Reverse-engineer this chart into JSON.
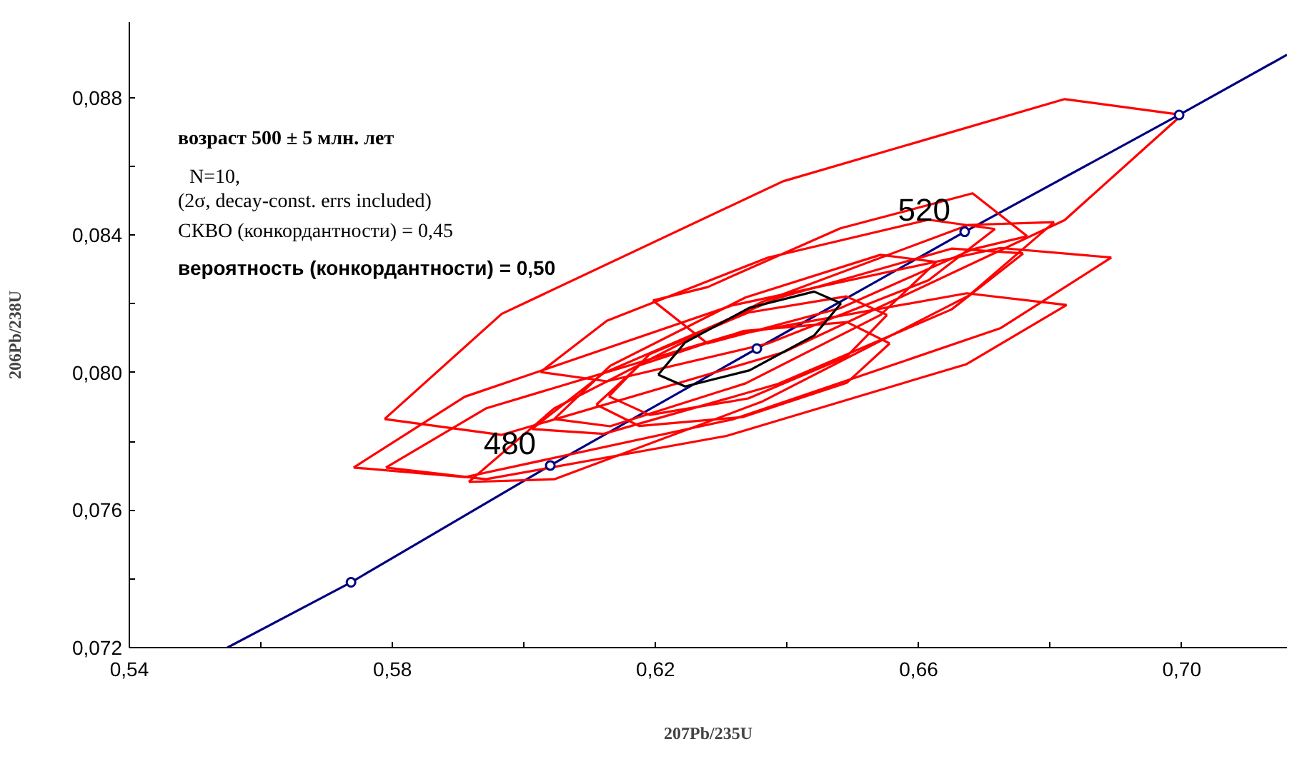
{
  "chart_data": {
    "type": "line",
    "xlabel": "207Pb/235U",
    "ylabel": "206Pb/238U",
    "xlim": [
      0.54,
      0.716
    ],
    "ylim": [
      0.072,
      0.0902
    ],
    "xticks": [
      {
        "value": 0.54,
        "label": "0,54"
      },
      {
        "value": 0.56,
        "label": null
      },
      {
        "value": 0.58,
        "label": "0,58"
      },
      {
        "value": 0.6,
        "label": null
      },
      {
        "value": 0.62,
        "label": "0,62"
      },
      {
        "value": 0.64,
        "label": null
      },
      {
        "value": 0.66,
        "label": "0,66"
      },
      {
        "value": 0.68,
        "label": null
      },
      {
        "value": 0.7,
        "label": "0,70"
      }
    ],
    "yticks": [
      {
        "value": 0.072,
        "label": "0,072"
      },
      {
        "value": 0.074,
        "label": null
      },
      {
        "value": 0.076,
        "label": "0,076"
      },
      {
        "value": 0.078,
        "label": null
      },
      {
        "value": 0.08,
        "label": "0,080"
      },
      {
        "value": 0.082,
        "label": null
      },
      {
        "value": 0.084,
        "label": "0,084"
      },
      {
        "value": 0.086,
        "label": null
      },
      {
        "value": 0.088,
        "label": "0,088"
      }
    ],
    "grid": false,
    "series": [
      {
        "color": "#000080",
        "x": [
          0.5549,
          0.5737,
          0.604,
          0.6354,
          0.667,
          0.6996,
          0.716
        ],
        "values": [
          0.072,
          0.0739,
          0.0773,
          0.0807,
          0.0841,
          0.0875,
          0.08925
        ]
      },
      {
        "color": "#ff0000",
        "x": [
          0.5788,
          0.5966,
          0.6394,
          0.6822,
          0.7
        ],
        "values": [
          0.07865,
          0.08171,
          0.08557,
          0.08796,
          0.0875
        ]
      },
      {
        "color": "#ff0000",
        "x": [
          0.5788,
          0.5966,
          0.6394,
          0.6822,
          0.7
        ],
        "values": [
          0.07865,
          0.07819,
          0.08059,
          0.08444,
          0.0875
        ]
      },
      {
        "color": "#ff0000",
        "x": [
          0.5741,
          0.591,
          0.6317,
          0.6724,
          0.6893
        ],
        "values": [
          0.07724,
          0.0793,
          0.08196,
          0.08363,
          0.08335
        ]
      },
      {
        "color": "#ff0000",
        "x": [
          0.5741,
          0.591,
          0.6317,
          0.6724,
          0.6893
        ],
        "values": [
          0.07724,
          0.07696,
          0.07864,
          0.08129,
          0.08335
        ]
      },
      {
        "color": "#ff0000",
        "x": [
          0.579,
          0.5942,
          0.6308,
          0.6673,
          0.6825
        ],
        "values": [
          0.07724,
          0.07896,
          0.08106,
          0.08231,
          0.08197
        ]
      },
      {
        "color": "#ff0000",
        "x": [
          0.579,
          0.5942,
          0.6308,
          0.6673,
          0.6825
        ],
        "values": [
          0.07724,
          0.0769,
          0.07816,
          0.08025,
          0.08197
        ]
      },
      {
        "color": "#ff0000",
        "x": [
          0.5916,
          0.6046,
          0.6361,
          0.6676,
          0.6806
        ],
        "values": [
          0.07682,
          0.07896,
          0.08205,
          0.0843,
          0.08438
        ]
      },
      {
        "color": "#ff0000",
        "x": [
          0.5916,
          0.6046,
          0.6361,
          0.6676,
          0.6806
        ],
        "values": [
          0.07682,
          0.0769,
          0.07915,
          0.08224,
          0.08438
        ]
      },
      {
        "color": "#ff0000",
        "x": [
          0.6012,
          0.6121,
          0.6386,
          0.665,
          0.6759
        ],
        "values": [
          0.07836,
          0.07999,
          0.08217,
          0.08361,
          0.08347
        ]
      },
      {
        "color": "#ff0000",
        "x": [
          0.6012,
          0.6121,
          0.6386,
          0.665,
          0.6759
        ],
        "values": [
          0.07836,
          0.07822,
          0.07967,
          0.08184,
          0.08347
        ]
      },
      {
        "color": "#ff0000",
        "x": [
          0.6025,
          0.6126,
          0.6371,
          0.6615,
          0.6716
        ],
        "values": [
          0.08002,
          0.08151,
          0.08335,
          0.08445,
          0.08418
        ]
      },
      {
        "color": "#ff0000",
        "x": [
          0.6025,
          0.6126,
          0.6371,
          0.6615,
          0.6716
        ],
        "values": [
          0.08002,
          0.07975,
          0.08085,
          0.08269,
          0.08418
        ]
      },
      {
        "color": "#ff0000",
        "x": [
          0.6046,
          0.6131,
          0.6337,
          0.6542,
          0.6627
        ],
        "values": [
          0.07865,
          0.0802,
          0.08219,
          0.08343,
          0.08322
        ]
      },
      {
        "color": "#ff0000",
        "x": [
          0.6046,
          0.6131,
          0.6337,
          0.6542,
          0.6627
        ],
        "values": [
          0.07865,
          0.07844,
          0.07969,
          0.08168,
          0.08322
        ]
      },
      {
        "color": "#ff0000",
        "x": [
          0.611,
          0.6175,
          0.6333,
          0.6491,
          0.6556
        ],
        "values": [
          0.07907,
          0.08021,
          0.08121,
          0.08147,
          0.08085
        ]
      },
      {
        "color": "#ff0000",
        "x": [
          0.611,
          0.6175,
          0.6333,
          0.6491,
          0.6556
        ],
        "values": [
          0.07907,
          0.07845,
          0.07871,
          0.07971,
          0.08085
        ]
      },
      {
        "color": "#ff0000",
        "x": [
          0.6129,
          0.6191,
          0.6341,
          0.649,
          0.6552
        ],
        "values": [
          0.07931,
          0.08054,
          0.08175,
          0.08222,
          0.08168
        ]
      },
      {
        "color": "#ff0000",
        "x": [
          0.6129,
          0.6191,
          0.6341,
          0.649,
          0.6552
        ],
        "values": [
          0.07931,
          0.07877,
          0.07925,
          0.08046,
          0.08168
        ]
      },
      {
        "color": "#ff0000",
        "x": [
          0.6196,
          0.6279,
          0.6481,
          0.6682,
          0.6765
        ],
        "values": [
          0.0821,
          0.08249,
          0.0842,
          0.08522,
          0.08397
        ]
      },
      {
        "color": "#ff0000",
        "x": [
          0.6196,
          0.6279,
          0.6481,
          0.6682,
          0.6765
        ],
        "values": [
          0.0821,
          0.08085,
          0.08188,
          0.08359,
          0.08397
        ]
      },
      {
        "color": "#000000",
        "x": [
          0.6204,
          0.6245,
          0.6343,
          0.6441,
          0.6482
        ],
        "values": [
          0.07994,
          0.08088,
          0.08189,
          0.08236,
          0.08202
        ]
      },
      {
        "color": "#000000",
        "x": [
          0.6204,
          0.6245,
          0.6343,
          0.6441,
          0.6482
        ],
        "values": [
          0.07994,
          0.0796,
          0.08007,
          0.08108,
          0.08202
        ]
      },
      {
        "type": "scatter",
        "marker": "circle",
        "color": "#000080",
        "x": [
          0.5737,
          0.604,
          0.6354,
          0.667,
          0.6996
        ],
        "values": [
          0.0739,
          0.0773,
          0.0807,
          0.0841,
          0.0875
        ]
      }
    ],
    "annotations": [
      "возраст 500 ± 5 млн. лет",
      "N=10,",
      "(2σ, decay-const. errs included)",
      "СКВО (конкордантности) = 0,45",
      "вероятность (конкордантности) = 0,50",
      {
        "text": "480",
        "x": 0.604,
        "y": 0.0773
      },
      {
        "text": "520",
        "x": 0.667,
        "y": 0.0841
      }
    ]
  }
}
